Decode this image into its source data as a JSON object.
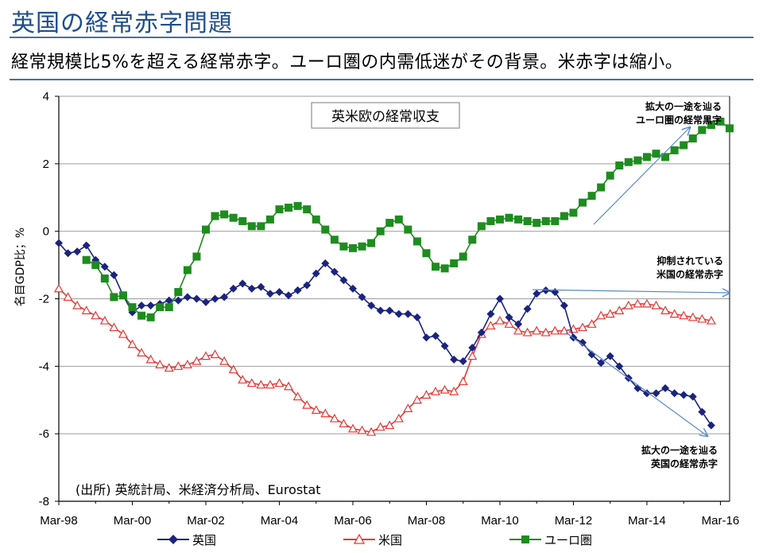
{
  "header": {
    "title": "英国の経常赤字問題",
    "subtitle": "経常規模比5%を超える経常赤字。ユーロ圏の内需低迷がその背景。米赤字は縮小。"
  },
  "chart_data": {
    "type": "line",
    "title": "英米欧の経常収支",
    "ylabel": "名目GDP比；%",
    "ylim": [
      -8,
      4
    ],
    "yticks": [
      "4",
      "2",
      "0",
      "-2",
      "-4",
      "-6",
      "-8"
    ],
    "xlim": [
      1998.0,
      2016.25
    ],
    "xticks": [
      "Mar-98",
      "Mar-00",
      "Mar-02",
      "Mar-04",
      "Mar-06",
      "Mar-08",
      "Mar-10",
      "Mar-12",
      "Mar-14",
      "Mar-16"
    ],
    "grid": "horizontal",
    "legend": "bottom",
    "source_note": "(出所) 英統計局、米経済分析局、Eurostat",
    "series": [
      {
        "name": "英国",
        "color": "#1a237e",
        "marker": "diamond",
        "x_start": 1998.0,
        "step": 0.25,
        "values": [
          -0.35,
          -0.65,
          -0.6,
          -0.42,
          -0.85,
          -1.05,
          -1.3,
          -1.9,
          -2.4,
          -2.2,
          -2.2,
          -2.15,
          -2.05,
          -2.05,
          -1.95,
          -2.0,
          -2.1,
          -2.0,
          -1.95,
          -1.7,
          -1.55,
          -1.7,
          -1.65,
          -1.85,
          -1.8,
          -1.9,
          -1.75,
          -1.6,
          -1.25,
          -0.95,
          -1.2,
          -1.45,
          -1.7,
          -1.95,
          -2.2,
          -2.35,
          -2.35,
          -2.45,
          -2.45,
          -2.55,
          -3.15,
          -3.1,
          -3.4,
          -3.8,
          -3.85,
          -3.45,
          -3.0,
          -2.45,
          -2.0,
          -2.55,
          -2.75,
          -2.3,
          -1.85,
          -1.75,
          -1.8,
          -2.2,
          -3.15,
          -3.3,
          -3.65,
          -3.9,
          -3.7,
          -4.0,
          -4.35,
          -4.65,
          -4.8,
          -4.8,
          -4.65,
          -4.8,
          -4.85,
          -4.9,
          -5.35,
          -5.75
        ]
      },
      {
        "name": "米国",
        "color": "#e53935",
        "marker": "triangle",
        "x_start": 1998.0,
        "step": 0.25,
        "values": [
          -1.7,
          -1.95,
          -2.2,
          -2.35,
          -2.5,
          -2.65,
          -2.85,
          -3.05,
          -3.35,
          -3.6,
          -3.8,
          -3.95,
          -4.05,
          -4.0,
          -3.95,
          -3.85,
          -3.7,
          -3.65,
          -3.85,
          -4.1,
          -4.4,
          -4.5,
          -4.55,
          -4.55,
          -4.5,
          -4.6,
          -4.9,
          -5.15,
          -5.3,
          -5.4,
          -5.55,
          -5.7,
          -5.85,
          -5.9,
          -5.95,
          -5.8,
          -5.75,
          -5.55,
          -5.25,
          -5.0,
          -4.85,
          -4.75,
          -4.7,
          -4.75,
          -4.45,
          -3.7,
          -3.05,
          -2.8,
          -2.65,
          -2.75,
          -2.95,
          -3.0,
          -2.95,
          -3.0,
          -2.95,
          -2.95,
          -2.9,
          -2.85,
          -2.75,
          -2.5,
          -2.45,
          -2.35,
          -2.2,
          -2.15,
          -2.15,
          -2.2,
          -2.35,
          -2.45,
          -2.5,
          -2.55,
          -2.6,
          -2.65
        ]
      },
      {
        "name": "ユーロ圏",
        "color": "#1e8c1e",
        "marker": "square",
        "x_start": 1998.75,
        "step": 0.25,
        "values": [
          -0.85,
          -1.0,
          -1.4,
          -1.95,
          -1.9,
          -2.25,
          -2.5,
          -2.55,
          -2.25,
          -2.25,
          -1.8,
          -1.15,
          -0.75,
          0.05,
          0.45,
          0.5,
          0.4,
          0.3,
          0.15,
          0.15,
          0.35,
          0.65,
          0.7,
          0.75,
          0.65,
          0.35,
          0.05,
          -0.25,
          -0.45,
          -0.5,
          -0.45,
          -0.35,
          0.0,
          0.25,
          0.35,
          0.05,
          -0.3,
          -0.65,
          -1.05,
          -1.1,
          -0.95,
          -0.75,
          -0.25,
          0.15,
          0.3,
          0.35,
          0.4,
          0.35,
          0.3,
          0.25,
          0.3,
          0.3,
          0.45,
          0.55,
          0.85,
          1.05,
          1.3,
          1.65,
          1.95,
          2.05,
          2.1,
          2.2,
          2.3,
          2.2,
          2.4,
          2.55,
          2.75,
          3.0,
          3.15,
          3.25,
          3.05
        ]
      }
    ],
    "annotations": [
      {
        "lines": [
          "拡大の一途を辿る",
          "ユーロ圏の経常黒字"
        ],
        "color": "#1e8c1e"
      },
      {
        "lines": [
          "抑制されている",
          "米国の経常赤字"
        ],
        "color": "#e53935"
      },
      {
        "lines": [
          "拡大の一途を辿る",
          "英国の経常赤字"
        ],
        "color": "#1a237e"
      }
    ]
  }
}
